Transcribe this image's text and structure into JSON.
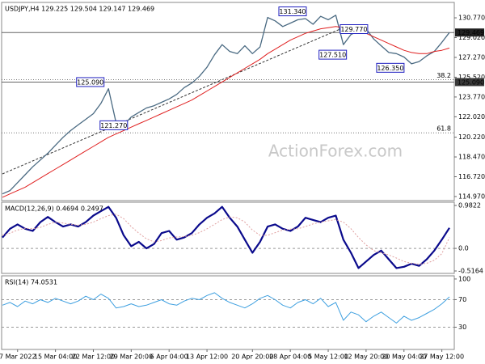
{
  "chart_data": [
    {
      "type": "line",
      "title": "USDJPY,H4 129.225 129.504 129.147 129.469",
      "watermark": "ActionForex.com",
      "categories": [
        null,
        null,
        "7 Mar 2022",
        null,
        null,
        null,
        null,
        "15 Mar 04:00",
        null,
        null,
        null,
        null,
        "22 Mar 12:00",
        null,
        null,
        null,
        null,
        "29 Mar 20:00",
        null,
        null,
        null,
        null,
        "6 Apr 04:00",
        null,
        null,
        null,
        null,
        "13 Apr 12:00",
        null,
        null,
        null,
        null,
        null,
        "20 Apr 20:00",
        null,
        null,
        null,
        null,
        "28 Apr 04:00",
        null,
        null,
        null,
        null,
        "5 May 12:00",
        null,
        null,
        null,
        null,
        "12 May 20:00",
        null,
        null,
        null,
        null,
        "20 May 04:00",
        null,
        null,
        null,
        null,
        "27 May 12:00",
        null
      ],
      "series": [
        {
          "name": "USDJPY",
          "color": "#4a6a82",
          "values": [
            115.2,
            115.5,
            116.2,
            116.9,
            117.6,
            118.2,
            118.8,
            119.5,
            120.2,
            120.8,
            121.3,
            121.8,
            122.3,
            123.2,
            124.5,
            121.5,
            121.3,
            122.0,
            122.4,
            122.8,
            123.0,
            123.3,
            123.6,
            124.0,
            124.6,
            125.0,
            125.6,
            126.4,
            127.5,
            128.4,
            127.8,
            127.6,
            128.3,
            127.6,
            128.2,
            130.8,
            130.5,
            130.0,
            130.3,
            130.6,
            130.7,
            130.2,
            130.9,
            130.6,
            131.0,
            128.4,
            129.3,
            129.6,
            129.8,
            128.9,
            128.3,
            127.7,
            127.6,
            127.3,
            126.7,
            126.9,
            127.4,
            127.8,
            128.6,
            129.469
          ]
        },
        {
          "name": "MA",
          "color": "#e02020",
          "values": [
            114.9,
            115.2,
            115.5,
            115.8,
            116.2,
            116.6,
            117.0,
            117.4,
            117.8,
            118.2,
            118.6,
            119.0,
            119.4,
            119.8,
            120.2,
            120.5,
            120.8,
            121.1,
            121.4,
            121.7,
            122.0,
            122.3,
            122.6,
            122.9,
            123.2,
            123.5,
            123.9,
            124.3,
            124.7,
            125.1,
            125.5,
            125.9,
            126.3,
            126.7,
            127.1,
            127.6,
            128.0,
            128.4,
            128.8,
            129.1,
            129.4,
            129.6,
            129.8,
            129.9,
            130.0,
            129.9,
            129.8,
            129.6,
            129.4,
            129.1,
            128.8,
            128.5,
            128.2,
            127.9,
            127.7,
            127.6,
            127.6,
            127.8,
            127.9,
            128.1
          ]
        }
      ],
      "ylim": [
        114.61,
        132.13
      ],
      "yticks": [
        {
          "value": 130.77,
          "label": "130.770"
        },
        {
          "value": 129.02,
          "label": "129.020"
        },
        {
          "value": 127.27,
          "label": "127.270"
        },
        {
          "value": 125.52,
          "label": "125.520"
        },
        {
          "value": 123.77,
          "label": "123.770"
        },
        {
          "value": 122.02,
          "label": "122.020"
        },
        {
          "value": 120.22,
          "label": "120.220"
        },
        {
          "value": 118.47,
          "label": "118.470"
        },
        {
          "value": 116.72,
          "label": "116.720"
        },
        {
          "value": 114.97,
          "label": "114.970"
        }
      ],
      "price_lines": [
        {
          "value": 129.469,
          "label": "129.469"
        },
        {
          "value": 125.09,
          "label": "125.090"
        }
      ],
      "levels": [
        {
          "value": 125.3,
          "label": "38.2"
        },
        {
          "value": 120.6,
          "label": "61.8"
        }
      ],
      "annotations": [
        {
          "value": 131.34,
          "label": "131.340"
        },
        {
          "value": 129.77,
          "label": "129.770"
        },
        {
          "value": 127.51,
          "label": "127.510"
        },
        {
          "value": 126.35,
          "label": "126.350"
        },
        {
          "value": 125.09,
          "label": "125.090"
        },
        {
          "value": 121.27,
          "label": "121.270"
        }
      ]
    },
    {
      "type": "line",
      "title": "MACD(12,26,9) 0.4694 0.2497",
      "series": [
        {
          "name": "MACD",
          "color": "#0a0a8c",
          "values": [
            0.25,
            0.45,
            0.55,
            0.45,
            0.4,
            0.6,
            0.72,
            0.6,
            0.5,
            0.55,
            0.5,
            0.6,
            0.75,
            0.85,
            0.95,
            0.7,
            0.3,
            0.05,
            0.15,
            0.0,
            0.1,
            0.35,
            0.4,
            0.2,
            0.25,
            0.35,
            0.55,
            0.7,
            0.8,
            0.95,
            0.7,
            0.5,
            0.2,
            -0.1,
            0.15,
            0.5,
            0.55,
            0.45,
            0.4,
            0.5,
            0.7,
            0.65,
            0.6,
            0.7,
            0.75,
            0.2,
            -0.1,
            -0.45,
            -0.3,
            -0.15,
            -0.05,
            -0.25,
            -0.45,
            -0.42,
            -0.35,
            -0.4,
            -0.25,
            -0.05,
            0.2,
            0.4694
          ]
        },
        {
          "name": "Signal",
          "color": "#e0a0a0",
          "dashed": true,
          "values": [
            0.3,
            0.35,
            0.42,
            0.46,
            0.45,
            0.48,
            0.55,
            0.6,
            0.58,
            0.55,
            0.53,
            0.55,
            0.6,
            0.68,
            0.75,
            0.78,
            0.68,
            0.5,
            0.35,
            0.22,
            0.15,
            0.18,
            0.24,
            0.26,
            0.27,
            0.3,
            0.36,
            0.45,
            0.55,
            0.66,
            0.72,
            0.7,
            0.6,
            0.42,
            0.3,
            0.3,
            0.36,
            0.42,
            0.44,
            0.45,
            0.5,
            0.56,
            0.6,
            0.63,
            0.66,
            0.6,
            0.45,
            0.25,
            0.08,
            -0.05,
            -0.1,
            -0.15,
            -0.22,
            -0.3,
            -0.34,
            -0.36,
            -0.34,
            -0.27,
            -0.12,
            0.2497
          ]
        }
      ],
      "ylim": [
        -0.572,
        1.056
      ],
      "yticks": [
        0.9822,
        {
          "value": 0,
          "label": "0.0"
        },
        -0.5164
      ],
      "ref_lines": [
        0
      ]
    },
    {
      "type": "line",
      "title": "RSI(14) 74.0531",
      "series": [
        {
          "name": "RSI",
          "color": "#3fa0e0",
          "values": [
            62,
            66,
            60,
            68,
            64,
            70,
            66,
            72,
            68,
            64,
            68,
            75,
            70,
            78,
            72,
            58,
            60,
            64,
            60,
            62,
            66,
            70,
            64,
            62,
            68,
            72,
            70,
            76,
            80,
            72,
            66,
            62,
            58,
            64,
            72,
            76,
            70,
            62,
            58,
            66,
            70,
            64,
            72,
            60,
            66,
            40,
            52,
            48,
            38,
            46,
            52,
            44,
            36,
            46,
            40,
            44,
            50,
            56,
            64,
            74.0531
          ]
        }
      ],
      "ylim": [
        -2.3,
        104.6
      ],
      "yticks": [
        100,
        70,
        30
      ],
      "ref_lines": [
        70,
        30
      ]
    }
  ]
}
